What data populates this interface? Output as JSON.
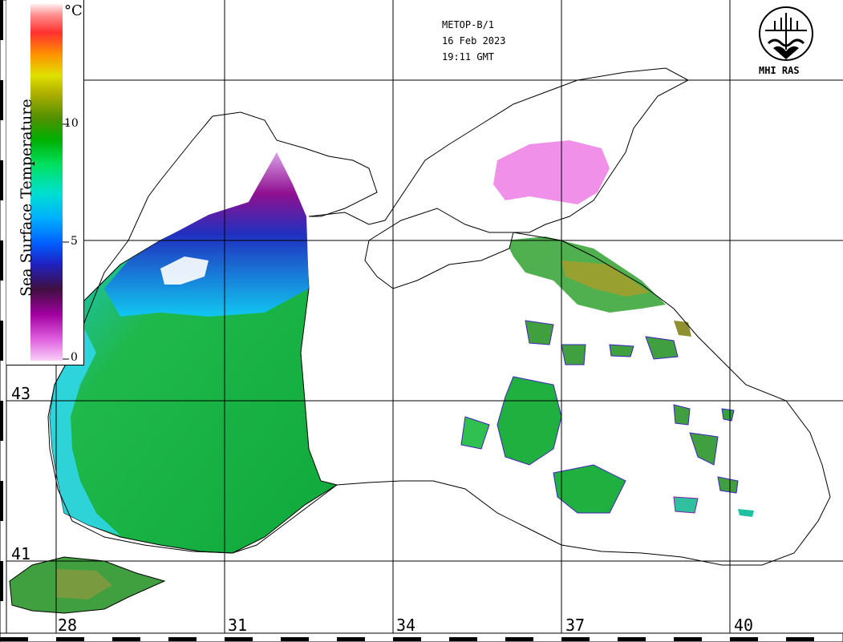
{
  "header": {
    "satellite": "METOP-B/1",
    "date": "16 Feb 2023",
    "time": "19:11 GMT"
  },
  "logo": {
    "label": "MHI RAS",
    "icon": "mhi-ras-logo-icon"
  },
  "legend": {
    "title": "Sea Surface Temperature",
    "unit": "°C",
    "ticks": [
      {
        "value": 10,
        "label": "10"
      },
      {
        "value": 5,
        "label": "5"
      },
      {
        "value": 0,
        "label": "0"
      }
    ],
    "range": [
      0,
      15
    ],
    "colorscale": [
      "#f8d0f8",
      "#e060e0",
      "#a000a0",
      "#401040",
      "#2020a0",
      "#0050ff",
      "#00b0ff",
      "#00e0d0",
      "#00e060",
      "#00c000",
      "#40a000",
      "#a0a000",
      "#e0e000",
      "#ff8000",
      "#ff3030",
      "#ff8080",
      "#ffe0e0"
    ]
  },
  "axes": {
    "longitude_labels": [
      "28",
      "31",
      "34",
      "37",
      "40"
    ],
    "latitude_labels": [
      "43",
      "41"
    ]
  },
  "colors": {
    "land": "#ffffff",
    "coast": "#000000",
    "grid": "#000000",
    "sst_warm": "#00b400",
    "sst_mid": "#00c8e0",
    "sst_cold": "#8000a0"
  }
}
